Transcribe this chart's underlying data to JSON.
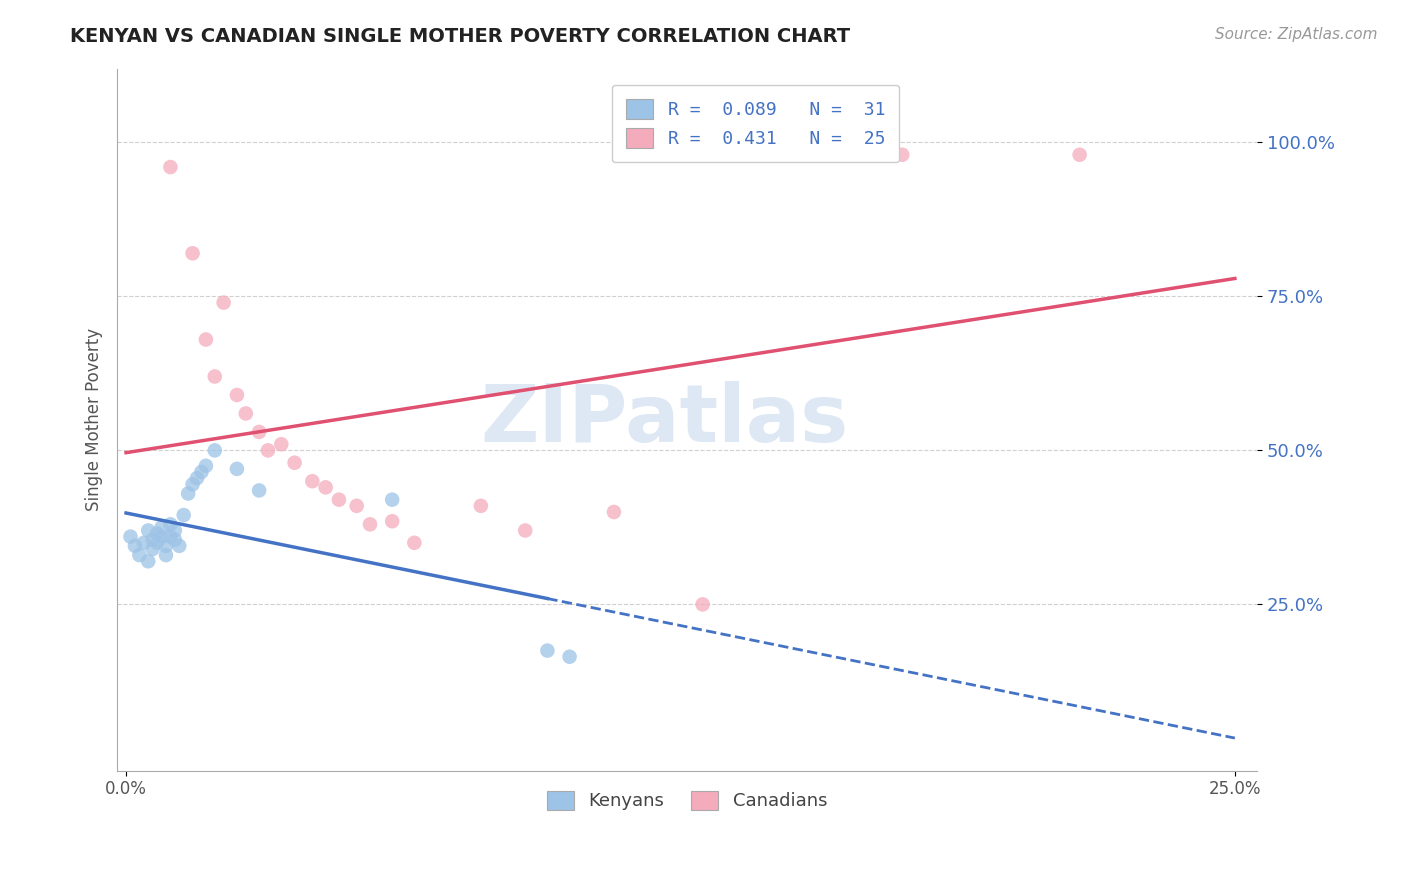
{
  "title": "KENYAN VS CANADIAN SINGLE MOTHER POVERTY CORRELATION CHART",
  "source": "Source: ZipAtlas.com",
  "ylabel_label": "Single Mother Poverty",
  "xlim": [
    -0.002,
    0.255
  ],
  "ylim": [
    -0.02,
    1.12
  ],
  "ytick_positions": [
    0.25,
    0.5,
    0.75,
    1.0
  ],
  "ytick_labels": [
    "25.0%",
    "50.0%",
    "75.0%",
    "100.0%"
  ],
  "xtick_positions": [
    0.0,
    0.25
  ],
  "xtick_labels": [
    "0.0%",
    "25.0%"
  ],
  "legend_R_entries": [
    {
      "label": "R =  0.089   N =  31",
      "color": "#9DC3E6"
    },
    {
      "label": "R =  0.431   N =  25",
      "color": "#F4ABBC"
    }
  ],
  "kenyan_color": "#9DC3E6",
  "canadian_color": "#F4ABBC",
  "kenyan_line_color": "#4472C4",
  "canadian_line_color": "#E05070",
  "watermark_text": "ZIPatlas",
  "background_color": "#FFFFFF",
  "grid_color": "#D0D0D0",
  "kenyan_points": [
    [
      0.001,
      0.36
    ],
    [
      0.002,
      0.345
    ],
    [
      0.003,
      0.33
    ],
    [
      0.004,
      0.35
    ],
    [
      0.005,
      0.37
    ],
    [
      0.005,
      0.32
    ],
    [
      0.006,
      0.355
    ],
    [
      0.006,
      0.34
    ],
    [
      0.007,
      0.365
    ],
    [
      0.007,
      0.35
    ],
    [
      0.008,
      0.36
    ],
    [
      0.008,
      0.375
    ],
    [
      0.009,
      0.33
    ],
    [
      0.009,
      0.345
    ],
    [
      0.01,
      0.38
    ],
    [
      0.01,
      0.36
    ],
    [
      0.011,
      0.37
    ],
    [
      0.011,
      0.355
    ],
    [
      0.012,
      0.345
    ],
    [
      0.013,
      0.395
    ],
    [
      0.014,
      0.43
    ],
    [
      0.015,
      0.445
    ],
    [
      0.016,
      0.455
    ],
    [
      0.017,
      0.465
    ],
    [
      0.018,
      0.475
    ],
    [
      0.02,
      0.5
    ],
    [
      0.025,
      0.47
    ],
    [
      0.03,
      0.435
    ],
    [
      0.06,
      0.42
    ],
    [
      0.095,
      0.175
    ],
    [
      0.1,
      0.165
    ]
  ],
  "canadian_points": [
    [
      0.01,
      0.96
    ],
    [
      0.015,
      0.82
    ],
    [
      0.018,
      0.68
    ],
    [
      0.02,
      0.62
    ],
    [
      0.022,
      0.74
    ],
    [
      0.025,
      0.59
    ],
    [
      0.027,
      0.56
    ],
    [
      0.03,
      0.53
    ],
    [
      0.032,
      0.5
    ],
    [
      0.035,
      0.51
    ],
    [
      0.038,
      0.48
    ],
    [
      0.042,
      0.45
    ],
    [
      0.045,
      0.44
    ],
    [
      0.048,
      0.42
    ],
    [
      0.052,
      0.41
    ],
    [
      0.055,
      0.38
    ],
    [
      0.06,
      0.385
    ],
    [
      0.065,
      0.35
    ],
    [
      0.08,
      0.41
    ],
    [
      0.09,
      0.37
    ],
    [
      0.11,
      0.4
    ],
    [
      0.13,
      0.25
    ],
    [
      0.15,
      0.99
    ],
    [
      0.175,
      0.98
    ],
    [
      0.215,
      0.98
    ]
  ]
}
